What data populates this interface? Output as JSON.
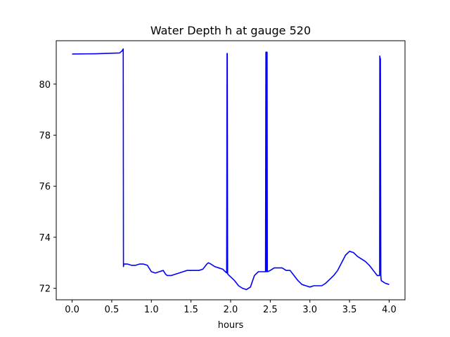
{
  "chart_data": {
    "type": "line",
    "title": "Water Depth h at gauge 520",
    "xlabel": "hours",
    "ylabel": "",
    "xlim": [
      -0.2,
      4.2
    ],
    "ylim": [
      71.55,
      81.7
    ],
    "xticks": [
      0.0,
      0.5,
      1.0,
      1.5,
      2.0,
      2.5,
      3.0,
      3.5,
      4.0
    ],
    "xtick_labels": [
      "0.0",
      "0.5",
      "1.0",
      "1.5",
      "2.0",
      "2.5",
      "3.0",
      "3.5",
      "4.0"
    ],
    "yticks": [
      72,
      74,
      76,
      78,
      80
    ],
    "ytick_labels": [
      "72",
      "74",
      "76",
      "78",
      "80"
    ],
    "grid": false,
    "series": [
      {
        "color": "#0000ff",
        "x": [
          0.0,
          0.3,
          0.6,
          0.63,
          0.645,
          0.648,
          0.652,
          0.66,
          0.7,
          0.75,
          0.8,
          0.85,
          0.9,
          0.95,
          1.0,
          1.05,
          1.1,
          1.15,
          1.18,
          1.2,
          1.25,
          1.3,
          1.35,
          1.4,
          1.45,
          1.5,
          1.55,
          1.6,
          1.65,
          1.7,
          1.72,
          1.75,
          1.8,
          1.85,
          1.9,
          1.95,
          1.955,
          1.958,
          1.962,
          1.965,
          2.0,
          2.05,
          2.1,
          2.15,
          2.2,
          2.25,
          2.3,
          2.35,
          2.4,
          2.44,
          2.445,
          2.448,
          2.452,
          2.455,
          2.46,
          2.463,
          2.466,
          2.5,
          2.55,
          2.6,
          2.65,
          2.7,
          2.75,
          2.8,
          2.85,
          2.9,
          2.95,
          3.0,
          3.05,
          3.1,
          3.15,
          3.2,
          3.25,
          3.3,
          3.35,
          3.4,
          3.45,
          3.5,
          3.55,
          3.6,
          3.65,
          3.7,
          3.75,
          3.8,
          3.85,
          3.88,
          3.882,
          3.886,
          3.89,
          3.895,
          3.9,
          3.95,
          4.0
        ],
        "y": [
          81.18,
          81.19,
          81.22,
          81.3,
          81.38,
          72.85,
          72.95,
          72.95,
          72.95,
          72.9,
          72.9,
          72.95,
          72.95,
          72.9,
          72.65,
          72.6,
          72.65,
          72.7,
          72.55,
          72.5,
          72.5,
          72.55,
          72.6,
          72.65,
          72.7,
          72.7,
          72.7,
          72.7,
          72.75,
          72.95,
          73.0,
          72.95,
          72.85,
          72.8,
          72.75,
          72.6,
          81.2,
          81.2,
          72.6,
          72.55,
          72.45,
          72.3,
          72.1,
          72.0,
          71.95,
          72.05,
          72.5,
          72.65,
          72.65,
          72.65,
          81.25,
          81.25,
          72.65,
          81.25,
          81.25,
          72.65,
          72.65,
          72.7,
          72.8,
          72.8,
          72.8,
          72.7,
          72.7,
          72.5,
          72.3,
          72.15,
          72.1,
          72.05,
          72.1,
          72.1,
          72.1,
          72.2,
          72.35,
          72.5,
          72.7,
          73.0,
          73.3,
          73.45,
          73.4,
          73.25,
          73.15,
          73.05,
          72.9,
          72.7,
          72.5,
          72.5,
          81.1,
          81.0,
          81.0,
          72.5,
          72.3,
          72.2,
          72.15
        ]
      }
    ]
  }
}
